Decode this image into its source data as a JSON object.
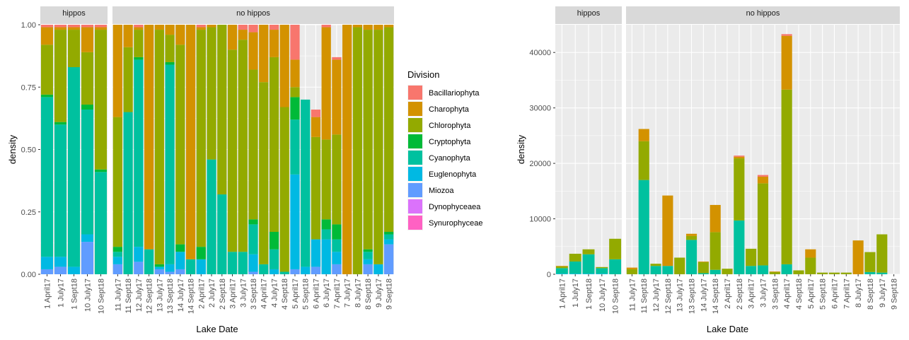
{
  "colors": {
    "Bacillariophyta": "#F8766D",
    "Charophyta": "#D39200",
    "Chlorophyta": "#93AA00",
    "Cryptophyta": "#00BA38",
    "Cyanophyta": "#00C19F",
    "Euglenophyta": "#00B9E3",
    "Miozoa": "#619CFF",
    "Dynophyceaea": "#DB72FB",
    "Synurophyceae": "#FF61C3"
  },
  "chart_data": [
    {
      "type": "bar",
      "stacked": true,
      "ylabel": "density",
      "xlabel": "Lake Date",
      "ylim": [
        0,
        1.0
      ],
      "yticks": [
        "0.00",
        "0.25",
        "0.50",
        "0.75",
        "1.00"
      ],
      "ytick_values": [
        0,
        0.25,
        0.5,
        0.75,
        1.0
      ],
      "grid": true,
      "legend_position": "right",
      "legend_title": "Division",
      "legend": [
        "Bacillariophyta",
        "Charophyta",
        "Chlorophyta",
        "Cryptophyta",
        "Cyanophyta",
        "Euglenophyta",
        "Miozoa",
        "Dynophyceaea",
        "Synurophyceae"
      ],
      "facets": [
        "hippos",
        "no hippos"
      ],
      "facet_categories": [
        [
          "1 April17",
          "1 July17",
          "1 Sept18",
          "10 July17",
          "10 Sept18"
        ],
        [
          "11 July17",
          "11 Sept18",
          "12 July17",
          "12 Sept18",
          "13 July17",
          "13 Sept18",
          "14 July17",
          "14 Sept18",
          "2 April17",
          "2 July17",
          "2 Sept18",
          "3 April17",
          "3 July17",
          "3 Sept18",
          "4 April17",
          "4 July17",
          "4 Sept18",
          "5 April17",
          "5 Sept18",
          "6 April17",
          "6 July17",
          "7 April17",
          "7 July17",
          "8 July17",
          "8 Sept18",
          "9 July17",
          "9 Sept18"
        ]
      ],
      "series_order": [
        "Miozoa",
        "Euglenophyta",
        "Cyanophyta",
        "Cryptophyta",
        "Chlorophyta",
        "Charophyta",
        "Bacillariophyta"
      ],
      "values": [
        [
          [
            0.02,
            0.05,
            0.64,
            0.01,
            0.2,
            0.07,
            0.01
          ],
          [
            0.03,
            0.04,
            0.53,
            0.01,
            0.37,
            0.01,
            0.01
          ],
          [
            0,
            0.03,
            0.8,
            0,
            0.15,
            0.01,
            0.01
          ],
          [
            0.13,
            0.03,
            0.5,
            0.02,
            0.21,
            0.1,
            0.01
          ],
          [
            0,
            0,
            0.41,
            0.01,
            0.56,
            0.01,
            0.01
          ]
        ],
        [
          [
            0.04,
            0.03,
            0.02,
            0.02,
            0.52,
            0.37,
            0
          ],
          [
            0,
            0,
            0.65,
            0,
            0.26,
            0.09,
            0
          ],
          [
            0.05,
            0.06,
            0.75,
            0.01,
            0.11,
            0.01,
            0.01
          ],
          [
            0,
            0,
            0.1,
            0,
            0,
            0.9,
            0
          ],
          [
            0.02,
            0.01,
            0,
            0.01,
            0.94,
            0.02,
            0
          ],
          [
            0.01,
            0.03,
            0.8,
            0.01,
            0.11,
            0.04,
            0
          ],
          [
            0.02,
            0.07,
            0,
            0.03,
            0.8,
            0.08,
            0
          ],
          [
            0,
            0,
            0.06,
            0,
            0,
            0.94,
            0
          ],
          [
            0,
            0.06,
            0,
            0.05,
            0.87,
            0.01,
            0.01
          ],
          [
            0,
            0,
            0.46,
            0,
            0.53,
            0.01,
            0
          ],
          [
            0,
            0,
            0.32,
            0,
            0.68,
            0,
            0
          ],
          [
            0,
            0,
            0.09,
            0,
            0.81,
            0.1,
            0
          ],
          [
            0,
            0,
            0.09,
            0,
            0.85,
            0.04,
            0.02
          ],
          [
            0.01,
            0.07,
            0.12,
            0.02,
            0.6,
            0.15,
            0.03
          ],
          [
            0,
            0,
            0.04,
            0,
            0.73,
            0.23,
            0
          ],
          [
            0,
            0.02,
            0.08,
            0.07,
            0.7,
            0.11,
            0.02
          ],
          [
            0,
            0,
            0.01,
            0,
            0.66,
            0.33,
            0
          ],
          [
            0.02,
            0.38,
            0.22,
            0.09,
            0.04,
            0.11,
            0.14
          ],
          [
            0,
            0.03,
            0.67,
            0,
            0,
            0,
            0
          ],
          [
            0.03,
            0.11,
            0,
            0,
            0.41,
            0.08,
            0.03
          ],
          [
            0,
            0.14,
            0.04,
            0.04,
            0.32,
            0.45,
            0.01
          ],
          [
            0.04,
            0.05,
            0.05,
            0.06,
            0.36,
            0.3,
            0.01
          ],
          [
            0,
            0,
            0,
            0,
            0,
            1.0,
            0
          ],
          [
            0,
            0,
            0,
            0,
            0.99,
            0.01,
            0
          ],
          [
            0.04,
            0.02,
            0.03,
            0.01,
            0.88,
            0.02,
            0
          ],
          [
            0,
            0.04,
            0,
            0,
            0.94,
            0.02,
            0
          ],
          [
            0.12,
            0.02,
            0.02,
            0.01,
            0.82,
            0.01,
            0
          ]
        ]
      ]
    },
    {
      "type": "bar",
      "stacked": true,
      "ylabel": "density",
      "xlabel": "Lake Date",
      "ylim": [
        0,
        45000
      ],
      "yticks": [
        "0",
        "10000",
        "20000",
        "30000",
        "40000"
      ],
      "ytick_values": [
        0,
        10000,
        20000,
        30000,
        40000
      ],
      "grid": true,
      "facets": [
        "hippos",
        "no hippos"
      ],
      "facet_categories": [
        [
          "1 April17",
          "1 July17",
          "1 Sept18",
          "10 July17",
          "10 Sept18"
        ],
        [
          "11 July17",
          "11 Sept18",
          "12 July17",
          "12 Sept18",
          "13 July17",
          "13 Sept18",
          "14 July17",
          "14 Sept18",
          "2 April17",
          "2 Sept18",
          "3 April17",
          "3 July17",
          "3 Sept18",
          "4 April17",
          "4 Sept18",
          "5 April17",
          "5 Sept18",
          "6 April17",
          "7 April17",
          "8 July17",
          "8 Sept18",
          "9 July17",
          "9 Sept18"
        ]
      ],
      "series_order": [
        "Euglenophyta",
        "Cyanophyta",
        "Chlorophyta",
        "Charophyta",
        "Bacillariophyta"
      ],
      "values": [
        [
          [
            100,
            1000,
            300,
            100,
            0
          ],
          [
            100,
            2200,
            1400,
            0,
            0
          ],
          [
            100,
            3500,
            900,
            0,
            0
          ],
          [
            100,
            1000,
            200,
            0,
            0
          ],
          [
            0,
            2700,
            3700,
            0,
            0
          ]
        ],
        [
          [
            0,
            0,
            900,
            300,
            0
          ],
          [
            0,
            17000,
            7000,
            2200,
            0
          ],
          [
            0,
            1500,
            400,
            0,
            0
          ],
          [
            0,
            1500,
            0,
            12700,
            0
          ],
          [
            0,
            0,
            3000,
            0,
            0
          ],
          [
            0,
            6200,
            700,
            400,
            0
          ],
          [
            0,
            200,
            2000,
            100,
            0
          ],
          [
            0,
            800,
            6800,
            4900,
            0
          ],
          [
            0,
            0,
            1000,
            0,
            0
          ],
          [
            0,
            9700,
            11200,
            300,
            200
          ],
          [
            0,
            1500,
            3100,
            0,
            0
          ],
          [
            0,
            1600,
            14800,
            1200,
            300
          ],
          [
            0,
            0,
            400,
            100,
            0
          ],
          [
            0,
            1800,
            31500,
            9700,
            300
          ],
          [
            0,
            0,
            700,
            0,
            0
          ],
          [
            0,
            0,
            3000,
            1500,
            0
          ],
          [
            0,
            0,
            300,
            0,
            0
          ],
          [
            0,
            0,
            300,
            0,
            0
          ],
          [
            0,
            0,
            300,
            0,
            0
          ],
          [
            0,
            0,
            0,
            6100,
            0
          ],
          [
            0,
            400,
            3600,
            0,
            0
          ],
          [
            0,
            300,
            6900,
            0,
            0
          ],
          [
            0,
            0,
            0,
            0,
            0
          ]
        ]
      ]
    }
  ]
}
